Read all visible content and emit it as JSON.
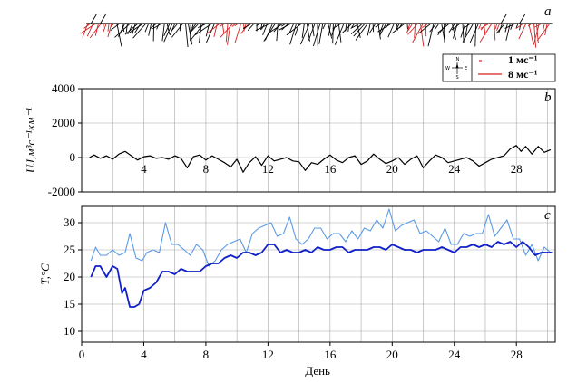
{
  "chart_data": [
    {
      "type": "vector-stick",
      "panel_label": "a",
      "legend": [
        {
          "label": "1 мс⁻¹",
          "color": "#d42020"
        },
        {
          "label": "8 мс⁻¹",
          "color": "#d42020"
        }
      ],
      "compass": {
        "n": "N",
        "s": "S",
        "e": "E",
        "w": "W"
      }
    },
    {
      "type": "line",
      "panel_label": "b",
      "ylabel": "UJ,м³с⁻¹км⁻¹",
      "ylim": [
        -2000,
        4000
      ],
      "yticks": [
        4000,
        2000,
        0,
        -2000
      ],
      "xticks": [
        4,
        8,
        12,
        16,
        20,
        24,
        28
      ],
      "xlim": [
        0,
        30.5
      ],
      "series": [
        {
          "color": "#000000",
          "x": [
            0.5,
            0.8,
            1.2,
            1.6,
            2.0,
            2.4,
            2.8,
            3.2,
            3.6,
            4.0,
            4.4,
            4.8,
            5.2,
            5.6,
            6.0,
            6.4,
            6.8,
            7.2,
            7.6,
            8.0,
            8.4,
            8.8,
            9.2,
            9.6,
            10.0,
            10.4,
            10.8,
            11.2,
            11.6,
            12.0,
            12.4,
            12.8,
            13.2,
            13.6,
            14.0,
            14.4,
            14.8,
            15.2,
            15.6,
            16.0,
            16.4,
            16.8,
            17.2,
            17.6,
            18.0,
            18.4,
            18.8,
            19.2,
            19.6,
            20.0,
            20.4,
            20.8,
            21.2,
            21.6,
            22.0,
            22.4,
            22.8,
            23.2,
            23.6,
            24.0,
            24.4,
            24.8,
            25.2,
            25.6,
            26.0,
            26.4,
            26.8,
            27.2,
            27.6,
            28.0,
            28.3,
            28.6,
            29.0,
            29.4,
            29.8,
            30.2
          ],
          "y": [
            0,
            150,
            -50,
            100,
            -100,
            200,
            350,
            100,
            -150,
            50,
            100,
            -50,
            0,
            -100,
            100,
            -50,
            -600,
            50,
            150,
            -150,
            100,
            -100,
            -300,
            -550,
            -100,
            -850,
            -300,
            50,
            -450,
            100,
            -200,
            -100,
            0,
            -200,
            -250,
            -750,
            -300,
            -400,
            -100,
            150,
            -150,
            -300,
            0,
            100,
            -400,
            -200,
            200,
            -100,
            -350,
            -200,
            0,
            -400,
            -100,
            100,
            -600,
            -200,
            150,
            0,
            -300,
            -200,
            -100,
            0,
            -200,
            -500,
            -300,
            -100,
            0,
            100,
            500,
            700,
            350,
            650,
            200,
            650,
            300,
            450
          ]
        }
      ]
    },
    {
      "type": "line",
      "panel_label": "c",
      "ylabel": "T,°C",
      "xlabel": "День",
      "ylim": [
        8,
        33
      ],
      "yticks": [
        30,
        25,
        20,
        15,
        10
      ],
      "xticks": [
        0,
        4,
        8,
        12,
        16,
        20,
        24,
        28
      ],
      "xlim": [
        0,
        30.5
      ],
      "series": [
        {
          "color": "#5b9ae6",
          "x": [
            0.6,
            0.9,
            1.2,
            1.6,
            2.0,
            2.4,
            2.8,
            3.1,
            3.5,
            3.9,
            4.2,
            4.6,
            5.0,
            5.4,
            5.8,
            6.2,
            6.6,
            7.0,
            7.4,
            7.8,
            8.2,
            8.6,
            9.0,
            9.4,
            9.8,
            10.2,
            10.6,
            11.0,
            11.4,
            11.8,
            12.2,
            12.6,
            13.0,
            13.4,
            13.8,
            14.2,
            14.6,
            15.0,
            15.4,
            15.8,
            16.2,
            16.6,
            17.0,
            17.4,
            17.8,
            18.2,
            18.6,
            19.0,
            19.4,
            19.8,
            20.2,
            20.6,
            21.0,
            21.4,
            21.8,
            22.2,
            22.6,
            23.0,
            23.4,
            23.8,
            24.2,
            24.6,
            25.0,
            25.4,
            25.8,
            26.2,
            26.6,
            27.0,
            27.4,
            27.8,
            28.2,
            28.6,
            29.0,
            29.4,
            29.8,
            30.2
          ],
          "y": [
            23,
            25.5,
            24,
            24,
            25,
            24,
            24.5,
            28,
            23.5,
            23,
            24.5,
            25,
            24.5,
            30,
            26,
            26,
            25,
            24,
            26,
            25,
            22,
            23,
            25,
            26,
            26.5,
            27,
            24.5,
            28,
            29,
            29.5,
            30,
            27.5,
            28,
            31,
            27,
            26,
            27,
            29,
            29,
            27,
            28,
            28,
            26.5,
            28.5,
            27,
            29,
            28.5,
            30.5,
            29,
            32.5,
            28.5,
            29.5,
            30,
            30.5,
            28,
            28.5,
            27.5,
            26.5,
            29,
            26,
            26,
            28,
            27.5,
            28,
            28,
            31.5,
            27.5,
            29,
            30.5,
            27,
            27,
            24,
            26,
            23,
            25.5,
            24.5
          ]
        },
        {
          "color": "#1020c8",
          "x": [
            0.6,
            0.9,
            1.2,
            1.6,
            2.0,
            2.3,
            2.6,
            2.8,
            3.1,
            3.4,
            3.7,
            4.0,
            4.4,
            4.8,
            5.2,
            5.6,
            6.0,
            6.4,
            6.8,
            7.2,
            7.6,
            8.0,
            8.4,
            8.8,
            9.2,
            9.6,
            10.0,
            10.4,
            10.8,
            11.2,
            11.6,
            12.0,
            12.4,
            12.8,
            13.2,
            13.6,
            14.0,
            14.4,
            14.8,
            15.2,
            15.6,
            16.0,
            16.4,
            16.8,
            17.2,
            17.6,
            18.0,
            18.4,
            18.8,
            19.2,
            19.6,
            20.0,
            20.4,
            20.8,
            21.2,
            21.6,
            22.0,
            22.4,
            22.8,
            23.2,
            23.6,
            24.0,
            24.4,
            24.8,
            25.2,
            25.6,
            26.0,
            26.4,
            26.8,
            27.2,
            27.6,
            28.0,
            28.4,
            28.8,
            29.2,
            29.6,
            30.0,
            30.3
          ],
          "y": [
            20,
            22,
            22,
            20,
            22,
            21.5,
            17,
            18,
            14.5,
            14.5,
            15,
            17.5,
            18,
            19,
            21,
            21,
            20.5,
            21.5,
            21,
            21,
            21,
            22,
            22.5,
            22.5,
            23.5,
            24,
            23.5,
            24.5,
            24.5,
            24,
            24.5,
            26,
            26,
            24.5,
            25,
            24.5,
            24.5,
            25,
            24.5,
            25.5,
            25,
            25,
            25.5,
            25.5,
            24.5,
            25,
            25,
            25,
            25.5,
            25.5,
            25,
            26,
            25.5,
            25,
            25,
            24.5,
            25,
            25,
            25,
            25.5,
            25,
            24.5,
            25.5,
            25.5,
            26,
            25.5,
            26,
            25.5,
            26.5,
            26,
            26.5,
            25.5,
            26.5,
            25.5,
            24,
            24.5,
            24.5,
            24.5
          ]
        }
      ]
    }
  ]
}
